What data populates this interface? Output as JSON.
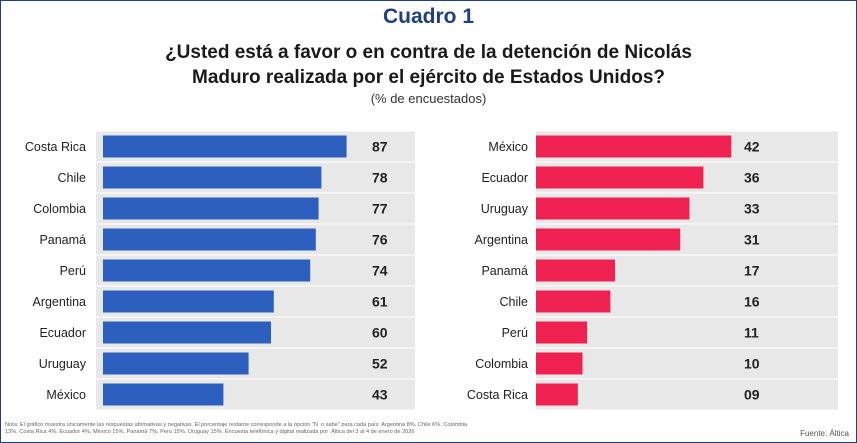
{
  "header": {
    "cuadro": "Cuadro 1",
    "question_line1": "¿Usted está a favor o en contra de la detención de Nicolás",
    "question_line2": "Maduro realizada por el ejército de Estados Unidos?",
    "subtitle": "(% de encuestados)"
  },
  "footer": {
    "note_line1": "Nota: El gráfico muestra únicamente las respuestas afirmativas y negativas. El porcentaje restante corresponde a la opción \"N",
    "note_line1b": "o sabe\" para cada país: Argentina 8%, Chile 6%, Colombia",
    "note_line2": "13%, Costa Rica 4%, Ecuador 4%, México 15%, Panamá 7%, Perú 15%, Uruguay 15%. Encuesta telefónica y digital realizada por",
    "note_line2b": "Áltica del 3 al 4 de enero de 2026",
    "source": "Fuente: Áltica"
  },
  "colors": {
    "favor": "#2d5fbf",
    "contra": "#ef2150",
    "track": "#e8e8e8",
    "title": "#1f3f82"
  },
  "chart_data": [
    {
      "type": "bar",
      "orientation": "horizontal",
      "name": "A favor",
      "categories": [
        "Costa Rica",
        "Chile",
        "Colombia",
        "Panamá",
        "Perú",
        "Argentina",
        "Ecuador",
        "Uruguay",
        "México"
      ],
      "values": [
        87,
        78,
        77,
        76,
        74,
        61,
        60,
        52,
        43
      ],
      "labels": [
        "87",
        "78",
        "77",
        "76",
        "74",
        "61",
        "60",
        "52",
        "43"
      ],
      "xlim": [
        0,
        100
      ],
      "unit": "%"
    },
    {
      "type": "bar",
      "orientation": "horizontal",
      "name": "En contra",
      "categories": [
        "México",
        "Ecuador",
        "Uruguay",
        "Argentina",
        "Panamá",
        "Chile",
        "Perú",
        "Colombia",
        "Costa Rica"
      ],
      "values": [
        42,
        36,
        33,
        31,
        17,
        16,
        11,
        10,
        9
      ],
      "labels": [
        "42",
        "36",
        "33",
        "31",
        "17",
        "16",
        "11",
        "10",
        "09"
      ],
      "xlim": [
        0,
        100
      ],
      "unit": "%"
    }
  ]
}
